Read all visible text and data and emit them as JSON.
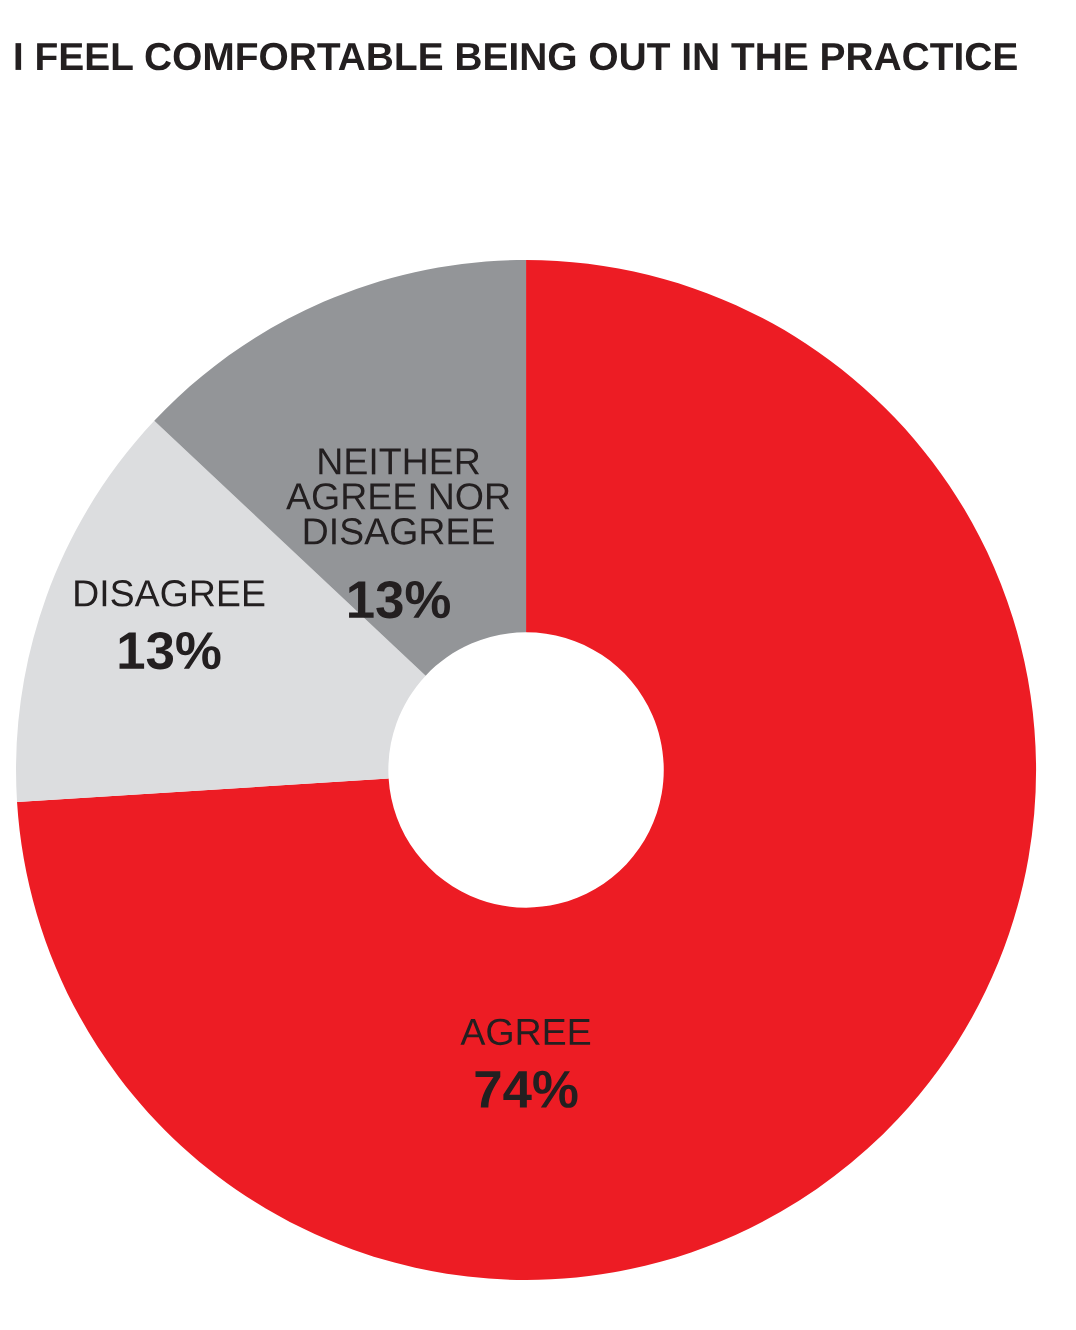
{
  "chart_data": {
    "type": "donut",
    "title": "I FEEL COMFORTABLE BEING OUT IN THE PRACTICE",
    "categories": [
      "AGREE",
      "DISAGREE",
      "NEITHER\nAGREE NOR\nDISAGREE"
    ],
    "values": [
      74,
      13,
      13
    ],
    "colors": [
      "#ed1c24",
      "#dcdddf",
      "#939598"
    ],
    "value_labels": [
      "74%",
      "13%",
      "13%"
    ]
  }
}
